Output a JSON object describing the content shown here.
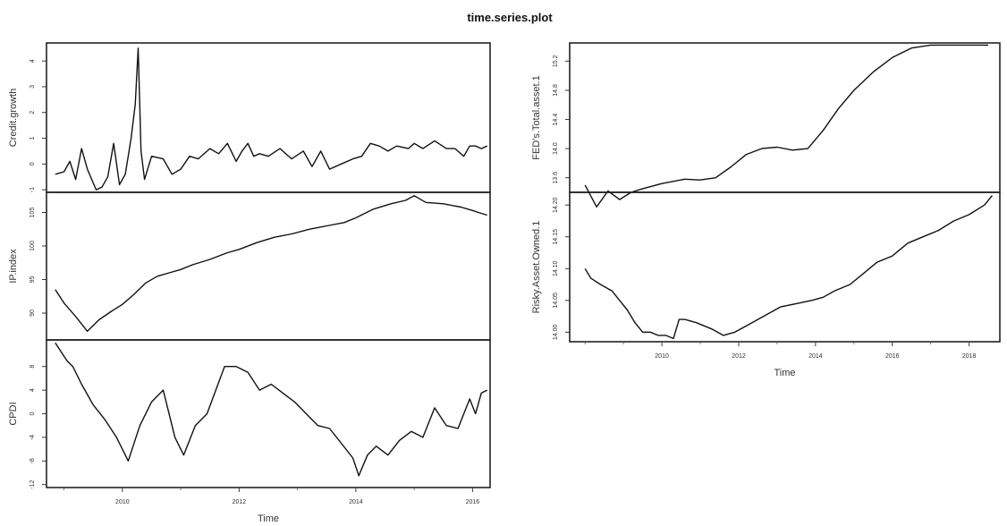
{
  "page": {
    "title": "time.series.plot"
  },
  "chart_data": [
    {
      "type": "line",
      "ylabel": "Credit.growth",
      "xlabel": "",
      "xlim": [
        2008.7,
        2016.3
      ],
      "ylim": [
        -1.1,
        4.7
      ],
      "yticks": [
        -1,
        0,
        1,
        2,
        3,
        4
      ],
      "ytick_labels": [
        "-1",
        "0",
        "1",
        "2",
        "3",
        "4"
      ],
      "x_ticks_shown": false,
      "series": [
        {
          "x": [
            2008.85,
            2009.0,
            2009.1,
            2009.2,
            2009.3,
            2009.4,
            2009.55,
            2009.65,
            2009.75,
            2009.85,
            2009.95,
            2010.05,
            2010.15,
            2010.22,
            2010.27,
            2010.32,
            2010.38,
            2010.5,
            2010.7,
            2010.85,
            2011.0,
            2011.15,
            2011.3,
            2011.5,
            2011.65,
            2011.8,
            2011.95,
            2012.05,
            2012.15,
            2012.25,
            2012.35,
            2012.5,
            2012.7,
            2012.9,
            2013.1,
            2013.25,
            2013.4,
            2013.55,
            2013.75,
            2013.95,
            2014.1,
            2014.25,
            2014.4,
            2014.55,
            2014.7,
            2014.9,
            2015.0,
            2015.15,
            2015.35,
            2015.55,
            2015.7,
            2015.85,
            2015.95,
            2016.05,
            2016.15,
            2016.25
          ],
          "y": [
            -0.4,
            -0.3,
            0.1,
            -0.6,
            0.6,
            -0.2,
            -1.0,
            -0.9,
            -0.5,
            0.8,
            -0.8,
            -0.4,
            1.0,
            2.3,
            4.5,
            0.5,
            -0.6,
            0.3,
            0.2,
            -0.4,
            -0.2,
            0.3,
            0.2,
            0.6,
            0.4,
            0.8,
            0.1,
            0.5,
            0.8,
            0.3,
            0.4,
            0.3,
            0.6,
            0.2,
            0.5,
            -0.1,
            0.5,
            -0.2,
            0.0,
            0.2,
            0.3,
            0.8,
            0.7,
            0.5,
            0.7,
            0.6,
            0.8,
            0.6,
            0.9,
            0.6,
            0.6,
            0.3,
            0.7,
            0.7,
            0.6,
            0.7
          ]
        }
      ]
    },
    {
      "type": "line",
      "ylabel": "IP.index",
      "xlabel": "",
      "xlim": [
        2008.7,
        2016.3
      ],
      "ylim": [
        86,
        108
      ],
      "yticks": [
        90,
        95,
        100,
        105
      ],
      "ytick_labels": [
        "90",
        "95",
        "100",
        "105"
      ],
      "x_ticks_shown": false,
      "series": [
        {
          "x": [
            2008.85,
            2009.0,
            2009.2,
            2009.4,
            2009.6,
            2009.8,
            2010.0,
            2010.2,
            2010.4,
            2010.6,
            2010.8,
            2011.0,
            2011.2,
            2011.5,
            2011.8,
            2012.0,
            2012.3,
            2012.6,
            2012.9,
            2013.2,
            2013.5,
            2013.8,
            2014.0,
            2014.3,
            2014.6,
            2014.85,
            2015.0,
            2015.2,
            2015.5,
            2015.8,
            2016.0,
            2016.1,
            2016.25
          ],
          "y": [
            93.5,
            91.5,
            89.5,
            87.3,
            89.0,
            90.2,
            91.3,
            92.8,
            94.5,
            95.5,
            96.0,
            96.5,
            97.2,
            98.0,
            99.0,
            99.5,
            100.5,
            101.3,
            101.8,
            102.5,
            103.0,
            103.5,
            104.2,
            105.5,
            106.3,
            106.8,
            107.5,
            106.5,
            106.3,
            105.8,
            105.3,
            105.0,
            104.6
          ]
        }
      ]
    },
    {
      "type": "line",
      "ylabel": "CPDI",
      "xlabel": "Time",
      "xlim": [
        2008.7,
        2016.3
      ],
      "ylim": [
        -12.5,
        12.5
      ],
      "yticks": [
        -12,
        -8,
        -4,
        0,
        4,
        8
      ],
      "ytick_labels": [
        "-12",
        "-8",
        "-4",
        "0",
        "4",
        "8"
      ],
      "xticks": [
        2010,
        2012,
        2014,
        2016
      ],
      "xtick_labels": [
        "2010",
        "2012",
        "2014",
        "2016"
      ],
      "series": [
        {
          "x": [
            2008.85,
            2008.95,
            2009.05,
            2009.15,
            2009.3,
            2009.5,
            2009.7,
            2009.9,
            2010.1,
            2010.3,
            2010.5,
            2010.7,
            2010.9,
            2011.05,
            2011.25,
            2011.45,
            2011.6,
            2011.75,
            2011.95,
            2012.15,
            2012.35,
            2012.55,
            2012.75,
            2012.95,
            2013.15,
            2013.35,
            2013.55,
            2013.75,
            2013.95,
            2014.05,
            2014.2,
            2014.35,
            2014.55,
            2014.75,
            2014.95,
            2015.15,
            2015.35,
            2015.55,
            2015.75,
            2015.95,
            2016.05,
            2016.15,
            2016.25
          ],
          "y": [
            12.0,
            10.5,
            9.0,
            8.0,
            5.0,
            1.5,
            -1.0,
            -4.0,
            -8.0,
            -2.0,
            2.0,
            4.0,
            -4.0,
            -7.0,
            -2.0,
            0.0,
            4.0,
            8.0,
            8.0,
            7.0,
            4.0,
            5.0,
            3.5,
            2.0,
            0.0,
            -2.0,
            -2.5,
            -5.0,
            -7.5,
            -10.5,
            -7.0,
            -5.5,
            -7.0,
            -4.5,
            -3.0,
            -4.0,
            1.0,
            -2.0,
            -2.5,
            2.5,
            0.0,
            3.5,
            4.0
          ]
        }
      ]
    },
    {
      "type": "line",
      "ylabel": "FED's.Total.asset.1",
      "xlabel": "",
      "xlim": [
        2007.6,
        2018.8
      ],
      "ylim": [
        13.4,
        15.45
      ],
      "yticks": [
        13.6,
        14.0,
        14.4,
        14.8,
        15.2
      ],
      "ytick_labels": [
        "13.6",
        "14.0",
        "14.4",
        "14.8",
        "15.2"
      ],
      "x_ticks_shown": false,
      "series": [
        {
          "x": [
            2008.0,
            2008.3,
            2008.6,
            2008.9,
            2009.2,
            2009.5,
            2010.0,
            2010.6,
            2011.0,
            2011.4,
            2011.8,
            2012.2,
            2012.6,
            2013.0,
            2013.4,
            2013.8,
            2014.2,
            2014.6,
            2015.0,
            2015.5,
            2016.0,
            2016.5,
            2017.0,
            2017.5,
            2018.0,
            2018.5
          ],
          "y": [
            13.5,
            13.2,
            13.42,
            13.3,
            13.4,
            13.45,
            13.52,
            13.58,
            13.57,
            13.6,
            13.75,
            13.92,
            14.0,
            14.02,
            13.98,
            14.0,
            14.25,
            14.55,
            14.8,
            15.05,
            15.25,
            15.38,
            15.42,
            15.42,
            15.42,
            15.42
          ]
        }
      ]
    },
    {
      "type": "line",
      "ylabel": "Risky.Asset.Owned.1",
      "xlabel": "Time",
      "xlim": [
        2007.6,
        2018.8
      ],
      "ylim": [
        13.985,
        14.22
      ],
      "yticks": [
        14.0,
        14.05,
        14.1,
        14.15,
        14.2
      ],
      "ytick_labels": [
        "14.00",
        "14.05",
        "14.10",
        "14.15",
        "14.20"
      ],
      "xticks": [
        2010,
        2012,
        2014,
        2016,
        2018
      ],
      "xtick_labels": [
        "2010",
        "2012",
        "2014",
        "2016",
        "2018"
      ],
      "series": [
        {
          "x": [
            2008.0,
            2008.15,
            2008.4,
            2008.7,
            2008.9,
            2009.1,
            2009.3,
            2009.5,
            2009.7,
            2009.9,
            2010.1,
            2010.3,
            2010.45,
            2010.6,
            2010.9,
            2011.3,
            2011.6,
            2011.9,
            2012.2,
            2012.5,
            2012.8,
            2013.1,
            2013.5,
            2013.9,
            2014.2,
            2014.5,
            2014.9,
            2015.2,
            2015.6,
            2016.0,
            2016.4,
            2016.8,
            2017.2,
            2017.6,
            2018.0,
            2018.4,
            2018.6
          ],
          "y": [
            14.1,
            14.085,
            14.075,
            14.065,
            14.05,
            14.035,
            14.015,
            14.0,
            14.0,
            13.995,
            13.995,
            13.99,
            14.02,
            14.02,
            14.015,
            14.005,
            13.995,
            14.0,
            14.01,
            14.02,
            14.03,
            14.04,
            14.045,
            14.05,
            14.055,
            14.065,
            14.075,
            14.09,
            14.11,
            14.12,
            14.14,
            14.15,
            14.16,
            14.175,
            14.185,
            14.2,
            14.215
          ]
        }
      ]
    }
  ]
}
